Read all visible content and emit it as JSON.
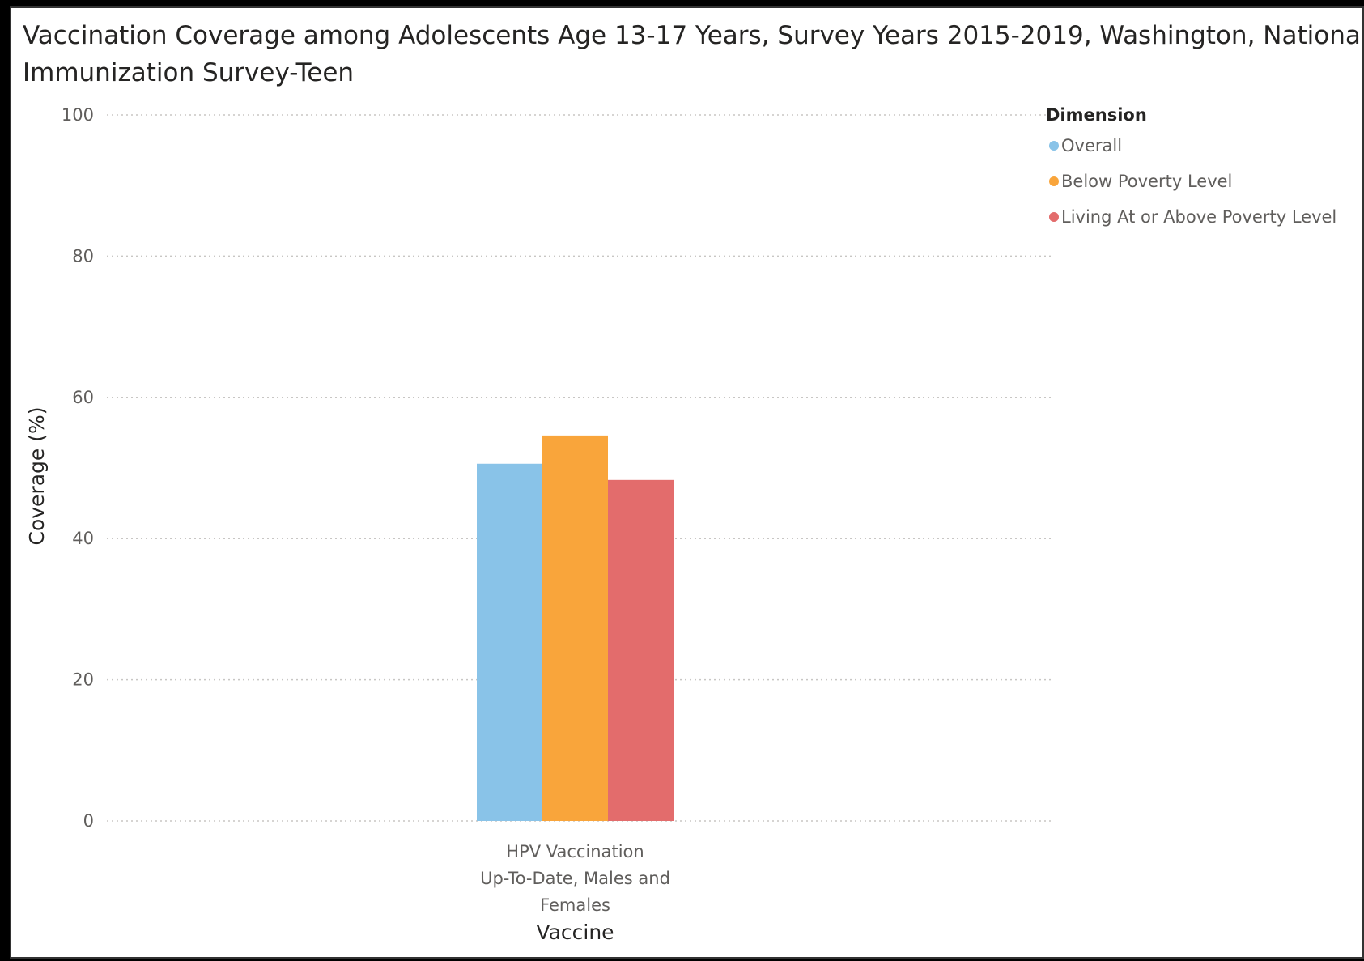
{
  "chart_data": {
    "type": "bar",
    "title": "Vaccination Coverage among Adolescents Age 13-17 Years, Survey Years 2015-2019, Washington, National Immunization Survey-Teen",
    "title_lines": [
      "Vaccination Coverage among Adolescents Age 13-17 Years, Survey Years 2015-2019, Washington, National",
      "Immunization Survey-Teen"
    ],
    "xlabel": "Vaccine",
    "ylabel": "Coverage (%)",
    "ylim": [
      0,
      100
    ],
    "yticks": [
      "0",
      "20",
      "40",
      "60",
      "80",
      "100"
    ],
    "grid": true,
    "legend_position": "top-right",
    "legend_title": "Dimension",
    "categories": [
      "HPV Vaccination Up-To-Date, Males and Females"
    ],
    "category_label_lines": [
      [
        "HPV Vaccination",
        "Up-To-Date, Males and",
        "Females"
      ]
    ],
    "series": [
      {
        "name": "Overall",
        "color": "#89c3e8",
        "values": [
          50.6
        ]
      },
      {
        "name": "Below Poverty Level",
        "color": "#f9a53b",
        "values": [
          54.6
        ]
      },
      {
        "name": "Living At or Above Poverty Level",
        "color": "#e36c6c",
        "values": [
          48.3
        ]
      }
    ]
  }
}
